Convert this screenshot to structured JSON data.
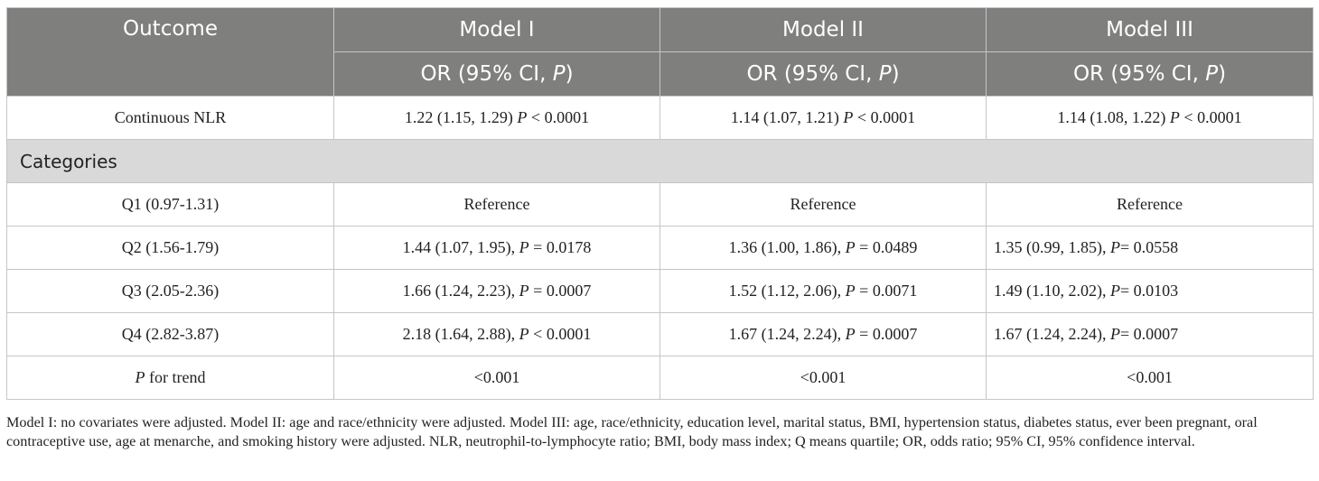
{
  "header": {
    "outcome": "Outcome",
    "models": [
      "Model I",
      "Model II",
      "Model III"
    ],
    "or_prefix": "OR (95% CI, ",
    "or_p": "P",
    "or_suffix": ")"
  },
  "continuous": {
    "label": "Continuous NLR",
    "cells": [
      {
        "a": "1.22 (1.15, 1.29) ",
        "p": "P",
        "b": " < 0.0001"
      },
      {
        "a": "1.14 (1.07, 1.21) ",
        "p": "P",
        "b": " < 0.0001"
      },
      {
        "a": "1.14 (1.08, 1.22) ",
        "p": "P",
        "b": " < 0.0001"
      }
    ]
  },
  "categories_label": "Categories",
  "rows": [
    {
      "label": "Q1 (0.97-1.31)",
      "cells": [
        {
          "a": "Reference",
          "p": "",
          "b": ""
        },
        {
          "a": "Reference",
          "p": "",
          "b": ""
        },
        {
          "a": "Reference",
          "p": "",
          "b": ""
        }
      ]
    },
    {
      "label": "Q2 (1.56-1.79)",
      "cells": [
        {
          "a": "1.44 (1.07, 1.95), ",
          "p": "P",
          "b": " = 0.0178"
        },
        {
          "a": "1.36 (1.00, 1.86), ",
          "p": "P",
          "b": " = 0.0489"
        },
        {
          "a": "1.35 (0.99, 1.85), ",
          "p": "P",
          "b": "= 0.0558"
        }
      ]
    },
    {
      "label": "Q3 (2.05-2.36)",
      "cells": [
        {
          "a": "1.66 (1.24, 2.23), ",
          "p": "P",
          "b": " = 0.0007"
        },
        {
          "a": "1.52 (1.12, 2.06), ",
          "p": "P",
          "b": " = 0.0071"
        },
        {
          "a": "1.49 (1.10, 2.02), ",
          "p": "P",
          "b": "= 0.0103"
        }
      ]
    },
    {
      "label": "Q4 (2.82-3.87)",
      "cells": [
        {
          "a": "2.18 (1.64, 2.88), ",
          "p": "P",
          "b": " < 0.0001"
        },
        {
          "a": "1.67 (1.24, 2.24), ",
          "p": "P",
          "b": " = 0.0007"
        },
        {
          "a": "1.67 (1.24, 2.24), ",
          "p": "P",
          "b": "= 0.0007"
        }
      ]
    }
  ],
  "trend": {
    "label_p": "P",
    "label_rest": " for trend",
    "cells": [
      "<0.001",
      "<0.001",
      "<0.001"
    ]
  },
  "footnote": "Model I: no covariates were adjusted. Model II: age and race/ethnicity were adjusted. Model III: age, race/ethnicity, education level, marital status, BMI, hypertension status, diabetes status, ever been pregnant, oral contraceptive use, age at menarche, and smoking history were adjusted. NLR, neutrophil-to-lymphocyte ratio; BMI, body mass index; Q means quartile; OR, odds ratio; 95% CI, 95% confidence interval."
}
